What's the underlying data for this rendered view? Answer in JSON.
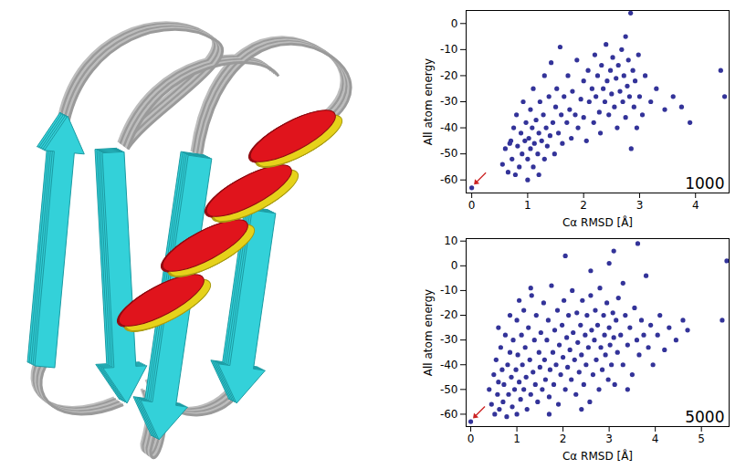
{
  "chart_data": [
    {
      "type": "scatter",
      "x_label": "Cα RMSD [Å]",
      "y_label": "All atom energy",
      "annotation": "1000",
      "color": "#333399",
      "marker": "circle",
      "grid": false,
      "xlim": [
        -0.1,
        4.6
      ],
      "ylim": [
        -65,
        5
      ],
      "xticks": [
        0,
        1,
        2,
        3,
        4
      ],
      "yticks": [
        -60,
        -50,
        -40,
        -30,
        -20,
        -10,
        0
      ],
      "x": [
        0,
        0.55,
        0.6,
        0.65,
        0.7,
        0.72,
        0.75,
        0.78,
        0.8,
        0.82,
        0.85,
        0.88,
        0.9,
        0.92,
        0.95,
        0.97,
        1.0,
        1.0,
        1.02,
        1.05,
        1.05,
        1.08,
        1.1,
        1.1,
        1.12,
        1.15,
        1.18,
        1.2,
        1.2,
        1.22,
        1.25,
        1.28,
        1.3,
        1.3,
        1.33,
        1.35,
        1.38,
        1.4,
        1.42,
        1.45,
        1.48,
        1.5,
        1.52,
        1.55,
        1.58,
        1.6,
        1.62,
        1.65,
        1.7,
        1.72,
        1.75,
        1.78,
        1.8,
        1.85,
        1.88,
        1.9,
        1.95,
        2.0,
        2.0,
        2.05,
        2.08,
        2.1,
        2.15,
        2.18,
        2.2,
        2.22,
        2.25,
        2.28,
        2.3,
        2.32,
        2.35,
        2.38,
        2.4,
        2.42,
        2.45,
        2.48,
        2.5,
        2.52,
        2.55,
        2.58,
        2.6,
        2.62,
        2.65,
        2.68,
        2.7,
        2.72,
        2.75,
        2.75,
        2.78,
        2.8,
        2.82,
        2.84,
        2.85,
        2.88,
        2.9,
        2.92,
        2.95,
        2.98,
        3.0,
        3.05,
        3.1,
        3.2,
        3.3,
        3.45,
        3.6,
        3.75,
        3.9,
        4.45,
        4.52,
        0.68
      ],
      "values": [
        -63,
        -54,
        -48,
        -57,
        -45,
        -52,
        -40,
        -58,
        -35,
        -47,
        -55,
        -42,
        -50,
        -30,
        -45,
        -38,
        -52,
        -60,
        -44,
        -33,
        -48,
        -40,
        -55,
        -25,
        -46,
        -37,
        -50,
        -42,
        -58,
        -30,
        -45,
        -35,
        -52,
        -20,
        -40,
        -47,
        -28,
        -43,
        -15,
        -38,
        -50,
        -32,
        -25,
        -42,
        -9,
        -35,
        -46,
        -28,
        -38,
        -20,
        -33,
        -44,
        -26,
        -35,
        -14,
        -40,
        -29,
        -22,
        -36,
        -45,
        -18,
        -30,
        -25,
        -38,
        -12,
        -28,
        -20,
        -34,
        -42,
        -16,
        -25,
        -30,
        -8,
        -22,
        -35,
        -18,
        -27,
        -13,
        -32,
        -21,
        -40,
        -16,
        -26,
        -10,
        -30,
        -20,
        -5,
        -36,
        -24,
        -14,
        -28,
        4,
        -48,
        -18,
        -32,
        -22,
        -40,
        -12,
        -28,
        -35,
        -20,
        -30,
        -25,
        -33,
        -28,
        -32,
        -38,
        -18,
        -28,
        -46
      ]
    },
    {
      "type": "scatter",
      "x_label": "Cα RMSD [Å]",
      "y_label": "All atom energy",
      "annotation": "5000",
      "color": "#333399",
      "marker": "circle",
      "grid": false,
      "xlim": [
        -0.1,
        5.6
      ],
      "ylim": [
        -65,
        11
      ],
      "xticks": [
        0,
        1,
        2,
        3,
        4,
        5
      ],
      "yticks": [
        -60,
        -50,
        -40,
        -30,
        -20,
        -10,
        0,
        10
      ],
      "x": [
        0,
        0.4,
        0.45,
        0.5,
        0.52,
        0.55,
        0.58,
        0.6,
        0.62,
        0.65,
        0.68,
        0.7,
        0.72,
        0.75,
        0.78,
        0.8,
        0.82,
        0.85,
        0.88,
        0.9,
        0.92,
        0.95,
        0.98,
        1.0,
        1.0,
        1.02,
        1.05,
        1.08,
        1.1,
        1.12,
        1.15,
        1.15,
        1.18,
        1.2,
        1.22,
        1.25,
        1.28,
        1.3,
        1.32,
        1.35,
        1.38,
        1.4,
        1.42,
        1.45,
        1.48,
        1.5,
        1.52,
        1.55,
        1.58,
        1.6,
        1.62,
        1.65,
        1.68,
        1.7,
        1.72,
        1.75,
        1.78,
        1.8,
        1.82,
        1.85,
        1.88,
        1.9,
        1.92,
        1.95,
        1.98,
        2.0,
        2.02,
        2.05,
        2.08,
        2.1,
        2.12,
        2.15,
        2.18,
        2.2,
        2.22,
        2.25,
        2.28,
        2.3,
        2.32,
        2.35,
        2.38,
        2.4,
        2.42,
        2.45,
        2.48,
        2.5,
        2.52,
        2.55,
        2.58,
        2.6,
        2.62,
        2.65,
        2.68,
        2.7,
        2.72,
        2.75,
        2.78,
        2.8,
        2.82,
        2.85,
        2.88,
        2.9,
        2.92,
        2.95,
        2.98,
        3.0,
        3.02,
        3.05,
        3.08,
        3.1,
        3.12,
        3.15,
        3.18,
        3.2,
        3.25,
        3.3,
        3.35,
        3.4,
        3.45,
        3.5,
        3.55,
        3.6,
        3.65,
        3.7,
        3.75,
        3.8,
        3.85,
        3.9,
        3.95,
        4.05,
        4.1,
        4.2,
        4.3,
        4.45,
        4.6,
        4.7,
        3.62,
        3.1,
        2.05,
        5.45,
        5.55,
        1.3,
        1.05,
        0.85,
        2.6,
        3.3,
        3.0,
        0.6,
        1.7,
        2.4,
        3.4
      ],
      "values": [
        -63,
        -50,
        -56,
        -44,
        -60,
        -38,
        -52,
        -47,
        -58,
        -33,
        -42,
        -55,
        -48,
        -28,
        -61,
        -40,
        -52,
        -35,
        -45,
        -57,
        -30,
        -50,
        -42,
        -22,
        -60,
        -36,
        -47,
        -54,
        -28,
        -40,
        -18,
        -50,
        -33,
        -45,
        -58,
        -25,
        -38,
        -52,
        -12,
        -43,
        -30,
        -48,
        -20,
        -55,
        -35,
        -41,
        -27,
        -50,
        -15,
        -38,
        -46,
        -30,
        -22,
        -53,
        -42,
        -8,
        -35,
        -48,
        -26,
        -40,
        -18,
        -56,
        -32,
        -44,
        -24,
        -37,
        -14,
        -50,
        -29,
        -41,
        -20,
        -34,
        -46,
        -10,
        -27,
        -38,
        -52,
        -19,
        -31,
        -43,
        -24,
        -36,
        -14,
        -48,
        -28,
        -40,
        -20,
        -33,
        -55,
        -12,
        -26,
        -44,
        -30,
        -18,
        -38,
        -24,
        -50,
        -9,
        -33,
        -42,
        -20,
        -28,
        -36,
        -15,
        -46,
        -25,
        -32,
        -40,
        -19,
        -29,
        -48,
        -22,
        -35,
        -13,
        -28,
        -40,
        -20,
        -32,
        -25,
        -44,
        -17,
        -30,
        -36,
        -22,
        -28,
        -4,
        -33,
        -24,
        -40,
        -28,
        -20,
        -34,
        -25,
        -30,
        -22,
        -26,
        9,
        6,
        4,
        -22,
        2,
        -9,
        -14,
        -20,
        -2,
        -7,
        1,
        -25,
        -60,
        -58,
        -50
      ]
    }
  ]
}
